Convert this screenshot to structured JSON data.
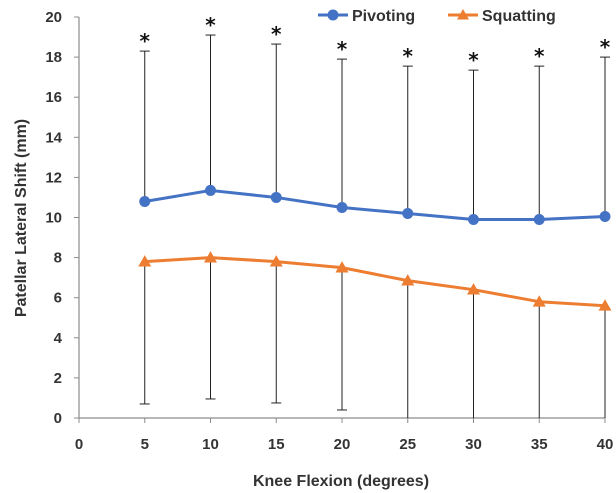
{
  "chart_data": {
    "type": "line",
    "xlabel": "Knee Flexion (degrees)",
    "ylabel": "Patellar Lateral Shift (mm)",
    "x_ticks": [
      0,
      5,
      10,
      15,
      20,
      25,
      30,
      35,
      40
    ],
    "y_ticks": [
      0,
      2,
      4,
      6,
      8,
      10,
      12,
      14,
      16,
      18,
      20
    ],
    "xlim": [
      0,
      40
    ],
    "ylim": [
      0,
      20
    ],
    "grid": false,
    "legend_position": "top-right",
    "x": [
      5,
      10,
      15,
      20,
      25,
      30,
      35,
      40
    ],
    "series": [
      {
        "name": "Pivoting",
        "color": "#4472C4",
        "marker": "circle",
        "values": [
          10.8,
          11.35,
          11.0,
          10.5,
          10.2,
          9.9,
          9.9,
          10.05
        ],
        "error_upper": [
          18.3,
          19.1,
          18.65,
          17.9,
          17.55,
          17.35,
          17.55,
          18.0
        ]
      },
      {
        "name": "Squatting",
        "color": "#ED7D31",
        "marker": "triangle",
        "values": [
          7.8,
          8.0,
          7.8,
          7.5,
          6.85,
          6.4,
          5.8,
          5.6
        ],
        "error_lower": [
          0.7,
          0.95,
          0.75,
          0.4,
          0.0,
          0.0,
          0.0,
          0.0
        ]
      }
    ],
    "annotations": [
      "*",
      "*",
      "*",
      "*",
      "*",
      "*",
      "*",
      "*"
    ]
  }
}
